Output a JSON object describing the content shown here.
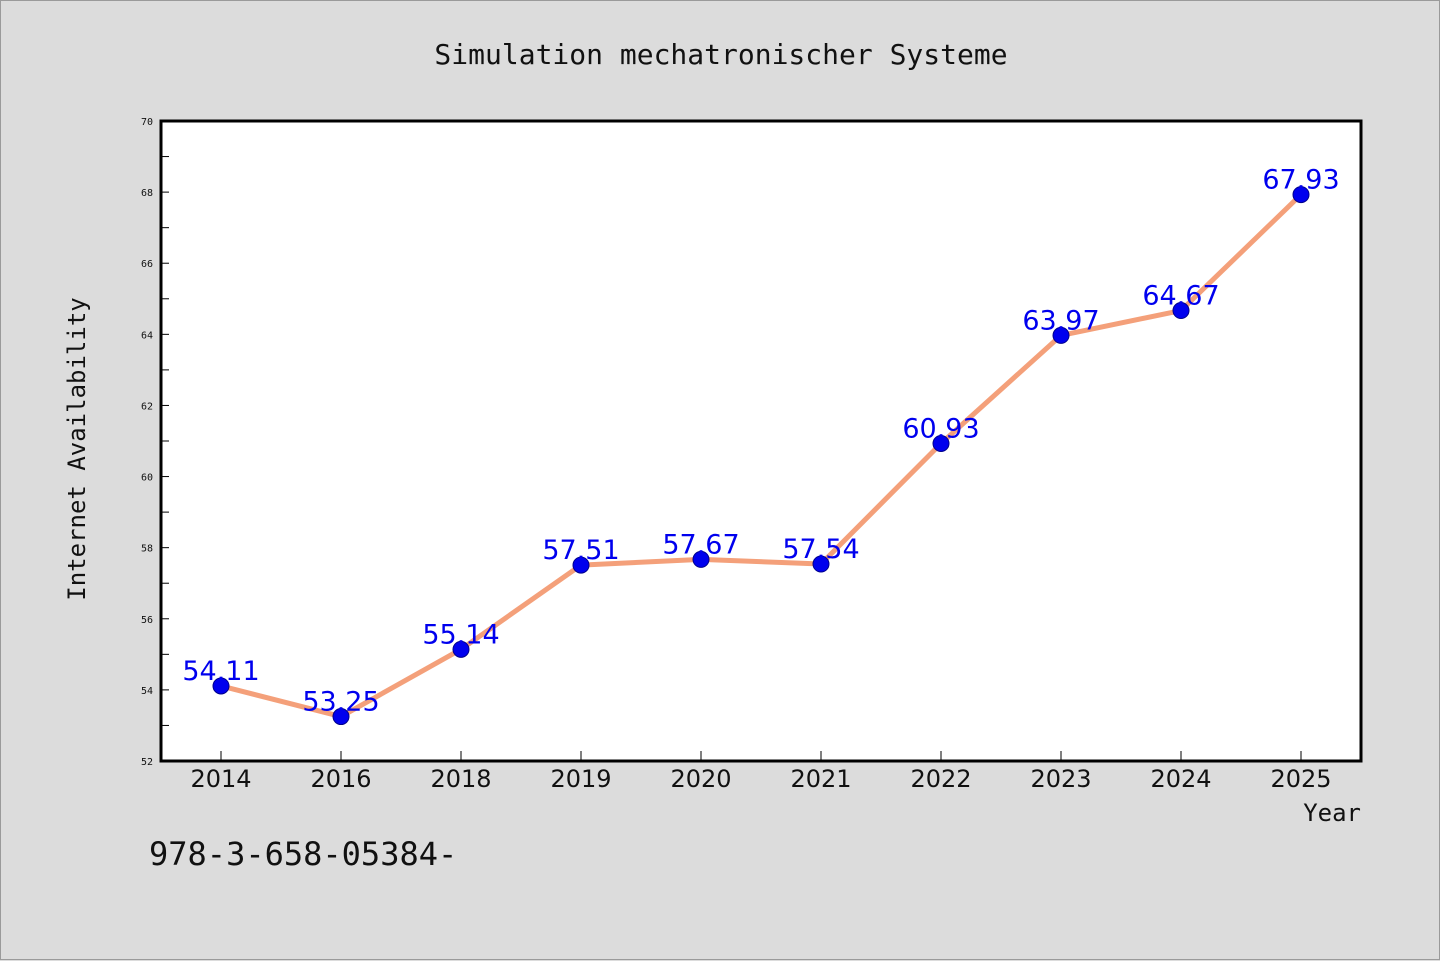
{
  "chart_data": {
    "type": "line",
    "title": "Simulation mechatronischer Systeme",
    "xlabel": "Year",
    "ylabel": "Internet Availability",
    "categories": [
      "2014",
      "2016",
      "2018",
      "2019",
      "2020",
      "2021",
      "2022",
      "2023",
      "2024",
      "2025"
    ],
    "series": [
      {
        "values": [
          54.11,
          53.25,
          55.14,
          57.51,
          57.67,
          57.54,
          60.93,
          63.97,
          64.67,
          67.93
        ],
        "labels": [
          "54.11",
          "53.25",
          "55.14",
          "57.51",
          "57.67",
          "57.54",
          "60.93",
          "63.97",
          "64.67",
          "67.93"
        ],
        "line_color": "#f4a07a",
        "marker_color": "#0000ee"
      }
    ],
    "ylim": [
      52,
      70
    ],
    "yticks": [
      52,
      54,
      56,
      58,
      60,
      62,
      64,
      66,
      68,
      70
    ],
    "grid": false,
    "legend": "none"
  },
  "annotation": "978-3-658-05384-"
}
